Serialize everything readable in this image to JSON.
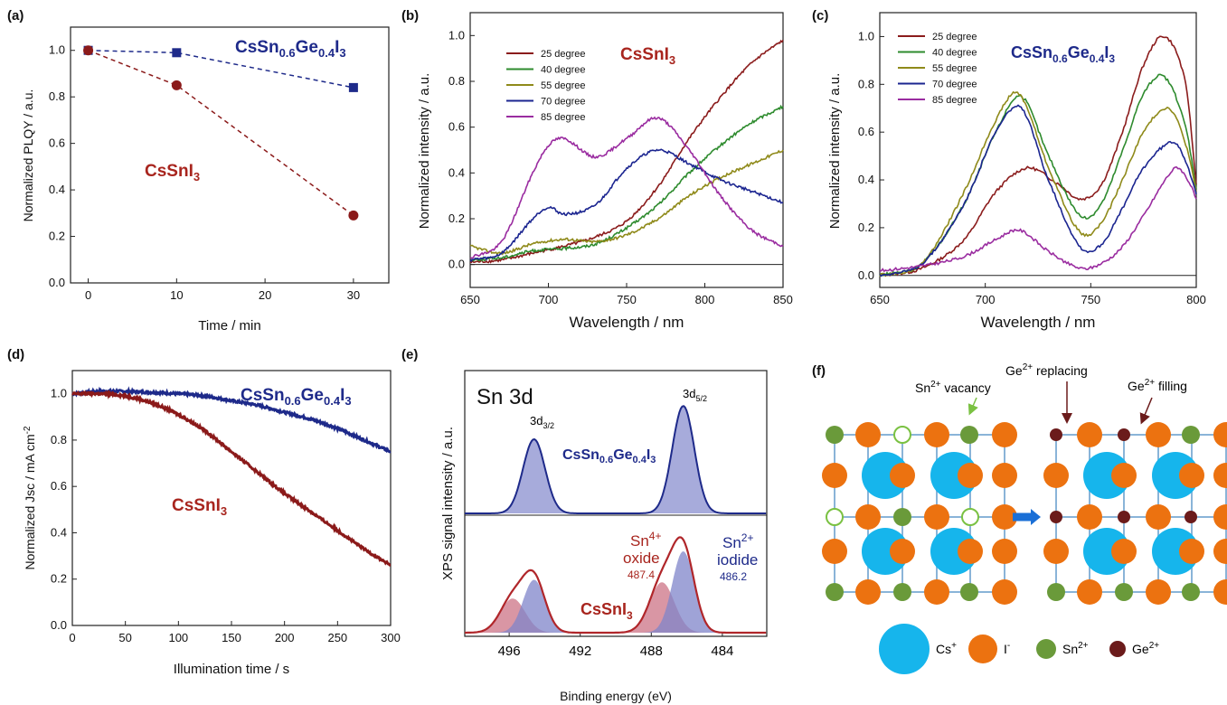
{
  "panels": {
    "a": "(a)",
    "b": "(b)",
    "c": "(c)",
    "d": "(d)",
    "e": "(e)",
    "f": "(f)"
  },
  "compounds": {
    "cssni3": {
      "pre": "CsSnI",
      "sub": "3"
    },
    "mixed": {
      "p1": "CsSn",
      "s1": "0.6",
      "p2": "Ge",
      "s2": "0.4",
      "p3": "I",
      "s3": "3"
    }
  },
  "colors": {
    "cssni3": "#8b1a1a",
    "mixed": "#1e2a8a",
    "t25": "#8b1c1c",
    "t40": "#2e8b2e",
    "t55": "#8f8a1a",
    "t70": "#1b2590",
    "t85": "#9a2ca0",
    "cs": "#16b5ec",
    "iodine": "#ec7210",
    "sn": "#6a9a3a",
    "ge": "#6b1b1b"
  },
  "chart_data": [
    {
      "id": "a",
      "type": "line",
      "xlabel": "Time / min",
      "ylabel": "Normalized PLQY / a.u.",
      "xlim": [
        -2,
        34
      ],
      "ylim": [
        0,
        1.1
      ],
      "xticks": [
        0,
        10,
        20,
        30
      ],
      "yticks": [
        0.0,
        0.2,
        0.4,
        0.6,
        0.8,
        1.0
      ],
      "series": [
        {
          "key": "mixed",
          "x": [
            0,
            10,
            30
          ],
          "y": [
            1.0,
            0.99,
            0.84
          ]
        },
        {
          "key": "cssni3",
          "x": [
            0,
            10,
            30
          ],
          "y": [
            1.0,
            0.85,
            0.29
          ]
        }
      ]
    },
    {
      "id": "b",
      "type": "line",
      "xlabel": "Wavelength / nm",
      "ylabel": "Normalized intensity / a.u.",
      "xlim": [
        650,
        850
      ],
      "ylim": [
        -0.1,
        1.1
      ],
      "xticks": [
        650,
        700,
        750,
        800,
        850
      ],
      "yticks": [
        0.0,
        0.2,
        0.4,
        0.6,
        0.8,
        1.0
      ],
      "legend": [
        "25 degree",
        "40 degree",
        "55 degree",
        "70 degree",
        "85 degree"
      ],
      "series": [
        {
          "name": "25 degree",
          "x": [
            650,
            670,
            690,
            710,
            730,
            750,
            770,
            790,
            810,
            830,
            850
          ],
          "y": [
            0.01,
            0.02,
            0.05,
            0.08,
            0.12,
            0.19,
            0.34,
            0.55,
            0.73,
            0.88,
            0.98
          ]
        },
        {
          "name": "40 degree",
          "x": [
            650,
            670,
            690,
            710,
            730,
            750,
            770,
            790,
            810,
            830,
            850
          ],
          "y": [
            0.02,
            0.03,
            0.06,
            0.07,
            0.09,
            0.16,
            0.26,
            0.4,
            0.52,
            0.62,
            0.69
          ]
        },
        {
          "name": "55 degree",
          "x": [
            650,
            670,
            690,
            710,
            730,
            750,
            770,
            790,
            810,
            830,
            850
          ],
          "y": [
            0.08,
            0.05,
            0.09,
            0.11,
            0.1,
            0.13,
            0.2,
            0.3,
            0.38,
            0.44,
            0.5
          ]
        },
        {
          "name": "70 degree",
          "x": [
            650,
            670,
            690,
            700,
            710,
            730,
            750,
            770,
            790,
            810,
            830,
            850
          ],
          "y": [
            0.02,
            0.05,
            0.2,
            0.25,
            0.22,
            0.26,
            0.42,
            0.5,
            0.44,
            0.37,
            0.32,
            0.27
          ]
        },
        {
          "name": "85 degree",
          "x": [
            650,
            670,
            690,
            700,
            710,
            730,
            750,
            770,
            790,
            810,
            830,
            850
          ],
          "y": [
            0.03,
            0.1,
            0.4,
            0.52,
            0.55,
            0.47,
            0.55,
            0.64,
            0.5,
            0.3,
            0.15,
            0.08
          ]
        }
      ]
    },
    {
      "id": "c",
      "type": "line",
      "xlabel": "Wavelength / nm",
      "ylabel": "Normalized intensity / a.u.",
      "xlim": [
        650,
        800
      ],
      "ylim": [
        -0.05,
        1.1
      ],
      "xticks": [
        650,
        700,
        750,
        800
      ],
      "yticks": [
        0.0,
        0.2,
        0.4,
        0.6,
        0.8,
        1.0
      ],
      "legend": [
        "25 degree",
        "40 degree",
        "55 degree",
        "70 degree",
        "85 degree"
      ],
      "series": [
        {
          "name": "25 degree",
          "x": [
            650,
            670,
            690,
            705,
            720,
            735,
            745,
            755,
            765,
            775,
            785,
            795,
            800
          ],
          "y": [
            0.0,
            0.03,
            0.15,
            0.35,
            0.45,
            0.38,
            0.32,
            0.38,
            0.6,
            0.88,
            1.0,
            0.8,
            0.38
          ]
        },
        {
          "name": "40 degree",
          "x": [
            650,
            670,
            690,
            705,
            717,
            730,
            745,
            755,
            765,
            775,
            785,
            795,
            800
          ],
          "y": [
            0.0,
            0.05,
            0.3,
            0.6,
            0.75,
            0.5,
            0.25,
            0.3,
            0.52,
            0.76,
            0.83,
            0.62,
            0.36
          ]
        },
        {
          "name": "55 degree",
          "x": [
            650,
            670,
            690,
            705,
            716,
            730,
            745,
            755,
            765,
            775,
            787,
            795,
            800
          ],
          "y": [
            0.0,
            0.05,
            0.35,
            0.65,
            0.76,
            0.45,
            0.18,
            0.22,
            0.4,
            0.6,
            0.7,
            0.55,
            0.35
          ]
        },
        {
          "name": "70 degree",
          "x": [
            650,
            670,
            690,
            705,
            717,
            730,
            745,
            755,
            765,
            775,
            789,
            795,
            800
          ],
          "y": [
            0.0,
            0.05,
            0.3,
            0.6,
            0.7,
            0.4,
            0.12,
            0.13,
            0.28,
            0.45,
            0.56,
            0.48,
            0.34
          ]
        },
        {
          "name": "85 degree",
          "x": [
            650,
            670,
            690,
            705,
            716,
            730,
            745,
            755,
            765,
            775,
            790,
            796,
            800
          ],
          "y": [
            0.02,
            0.04,
            0.08,
            0.15,
            0.19,
            0.1,
            0.03,
            0.05,
            0.12,
            0.25,
            0.45,
            0.4,
            0.32
          ]
        }
      ]
    },
    {
      "id": "d",
      "type": "line",
      "xlabel": "Illumination time / s",
      "ylabel": "Normalized Jsc / mA cm",
      "xlim": [
        0,
        300
      ],
      "ylim": [
        0,
        1.1
      ],
      "xticks": [
        0,
        50,
        100,
        150,
        200,
        250,
        300
      ],
      "yticks": [
        0.0,
        0.2,
        0.4,
        0.6,
        0.8,
        1.0
      ],
      "series": [
        {
          "key": "mixed",
          "x": [
            0,
            25,
            50,
            100,
            125,
            150,
            175,
            200,
            225,
            250,
            275,
            300
          ],
          "y": [
            1.0,
            1.01,
            1.01,
            1.0,
            0.99,
            0.97,
            0.95,
            0.92,
            0.89,
            0.85,
            0.8,
            0.75
          ]
        },
        {
          "key": "cssni3",
          "x": [
            0,
            25,
            50,
            75,
            100,
            125,
            150,
            175,
            200,
            225,
            250,
            275,
            300
          ],
          "y": [
            1.0,
            1.0,
            0.99,
            0.96,
            0.91,
            0.84,
            0.75,
            0.66,
            0.57,
            0.49,
            0.41,
            0.33,
            0.26
          ]
        }
      ]
    },
    {
      "id": "e",
      "type": "area",
      "xlabel": "Binding energy (eV)",
      "ylabel": "XPS signal intensity / a.u.",
      "xlim": [
        498.5,
        481.5
      ],
      "xticks": [
        496,
        492,
        488,
        484
      ],
      "spectra": [
        {
          "key": "mixed",
          "centers": [
            494.6,
            486.2
          ],
          "amps": [
            1.0,
            1.45
          ],
          "w": 0.62
        },
        {
          "key": "cssni3",
          "sn2": {
            "centers": [
              494.6,
              486.2
            ],
            "amps": [
              0.65,
              1.0
            ],
            "w": 0.62
          },
          "sn4": {
            "centers": [
              495.8,
              487.4
            ],
            "amps": [
              0.42,
              0.62
            ],
            "w": 0.7
          }
        }
      ]
    }
  ],
  "xps": {
    "title": "Sn 3d",
    "peak_32": {
      "base": "3d",
      "sub": "3/2"
    },
    "peak_52": {
      "base": "3d",
      "sub": "5/2"
    },
    "sn4": {
      "base": "Sn",
      "sup": "4+",
      "label": "oxide",
      "value": "487.4"
    },
    "sn2": {
      "base": "Sn",
      "sup": "2+",
      "label": "iodide",
      "value": "486.2"
    },
    "ylabel_sup": "-2"
  },
  "schematic": {
    "vacancy": {
      "base": "Sn",
      "sup": "2+",
      "rest": " vacancy"
    },
    "replacing": {
      "base": "Ge",
      "sup": "2+",
      "rest": " replacing"
    },
    "filling": {
      "base": "Ge",
      "sup": "2+",
      "rest": " filling"
    },
    "legend": [
      {
        "key": "cs",
        "base": "Cs",
        "sup": "+"
      },
      {
        "key": "iodine",
        "base": "I",
        "sup": "-"
      },
      {
        "key": "sn",
        "base": "Sn",
        "sup": "2+"
      },
      {
        "key": "ge",
        "base": "Ge",
        "sup": "2+"
      }
    ]
  }
}
